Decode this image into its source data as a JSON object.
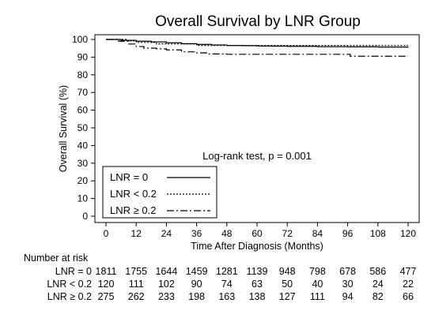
{
  "chart_data": {
    "type": "line",
    "title": "Overall Survival by LNR Group",
    "xlabel": "Time After Diagnosis (Months)",
    "ylabel": "Overall Survival (%)",
    "xlim": [
      0,
      120
    ],
    "ylim": [
      0,
      100
    ],
    "xticks": [
      0,
      12,
      24,
      36,
      48,
      60,
      72,
      84,
      96,
      108,
      120
    ],
    "yticks": [
      0,
      10,
      20,
      30,
      40,
      50,
      60,
      70,
      80,
      90,
      100
    ],
    "grid": false,
    "legend_position": "bottom-left",
    "annotation": "Log-rank test, p = 0.001",
    "series": [
      {
        "name": "LNR = 0",
        "style": "solid",
        "x": [
          0,
          6,
          12,
          18,
          24,
          30,
          36,
          42,
          48,
          54,
          60,
          66,
          72,
          84,
          96,
          108,
          120
        ],
        "y": [
          100,
          99.5,
          99,
          98.6,
          98.1,
          97.6,
          97.2,
          96.9,
          96.6,
          96.5,
          96.3,
          96.2,
          96.1,
          95.9,
          95.8,
          95.7,
          95.6
        ]
      },
      {
        "name": "LNR < 0.2",
        "style": "dotted",
        "x": [
          0,
          8,
          12,
          20,
          24,
          36,
          48,
          60,
          72,
          84,
          96,
          108,
          120
        ],
        "y": [
          100,
          99.2,
          98.3,
          97.5,
          97.4,
          96.6,
          96.6,
          96.6,
          96.6,
          96.6,
          96.6,
          96.6,
          96.6
        ]
      },
      {
        "name": "LNR ≥ 0.2",
        "style": "dashdot",
        "x": [
          0,
          5,
          9,
          12,
          15,
          20,
          24,
          30,
          36,
          40,
          48,
          60,
          72,
          84,
          96,
          97,
          108,
          120
        ],
        "y": [
          100,
          99,
          97.4,
          96,
          95.1,
          94.7,
          94.1,
          93,
          92.4,
          91.8,
          91.6,
          91.6,
          91.6,
          91.6,
          91.6,
          90.5,
          90.5,
          90.5
        ]
      }
    ],
    "number_at_risk": {
      "heading": "Number at risk",
      "times": [
        0,
        12,
        24,
        36,
        48,
        60,
        72,
        84,
        96,
        108,
        120
      ],
      "rows": [
        {
          "label": "LNR = 0",
          "counts": [
            1811,
            1755,
            1644,
            1459,
            1281,
            1139,
            948,
            798,
            678,
            586,
            477
          ]
        },
        {
          "label": "LNR < 0.2",
          "counts": [
            120,
            111,
            102,
            90,
            74,
            63,
            50,
            40,
            30,
            24,
            22
          ]
        },
        {
          "label": "LNR ≥ 0.2",
          "counts": [
            275,
            262,
            233,
            198,
            163,
            138,
            127,
            111,
            94,
            82,
            66
          ]
        }
      ]
    }
  }
}
